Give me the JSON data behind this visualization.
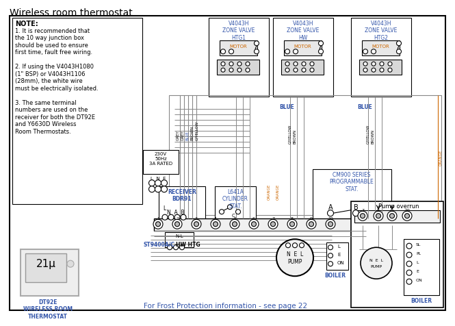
{
  "title": "Wireless room thermostat",
  "bg_color": "#ffffff",
  "blue_color": "#3355aa",
  "orange_color": "#cc6600",
  "grey_color": "#888888",
  "frost_text": "For Frost Protection information - see page 22",
  "dt92e_label": "DT92E\nWIRELESS ROOM\nTHERMOSTAT",
  "zone_labels": [
    "V4043H\nZONE VALVE\nHTG1",
    "V4043H\nZONE VALVE\nHW",
    "V4043H\nZONE VALVE\nHTG2"
  ],
  "wire_labels_htg1": [
    "GREY",
    "GREY",
    "BLUE",
    "BROWN",
    "G/YELLOW"
  ],
  "wire_labels_hw": [
    "BLUE",
    "G/YELLOW",
    "BROWN"
  ],
  "wire_labels_htg2": [
    "BLUE",
    "G/YELLOW",
    "BROWN"
  ],
  "orange_wire": "ORANGE",
  "power_label": "230V\n50Hz\n3A RATED",
  "receiver_label": "RECEIVER\nBDR91",
  "cylinder_label": "L641A\nCYLINDER\nSTAT.",
  "cm900_label": "CM900 SERIES\nPROGRAMMABLE\nSTAT.",
  "pump_overrun_label": "Pump overrun",
  "st9400_label": "ST9400A/C",
  "hw_htg_label": "HW HTG",
  "nel_pump_label": "N E L\nPUMP",
  "boiler_lne": "L\nE\nON",
  "boiler_slpl": "SL\nPL\nL\nE\nON",
  "note_lines": [
    "NOTE:",
    "1. It is recommended that",
    "the 10 way junction box",
    "should be used to ensure",
    "first time, fault free wiring.",
    " ",
    "2. If using the V4043H1080",
    "(1\" BSP) or V4043H1106",
    "(28mm), the white wire",
    "must be electrically isolated.",
    " ",
    "3. The same terminal",
    "numbers are used on the",
    "receiver for both the DT92E",
    "and Y6630D Wireless",
    "Room Thermostats."
  ]
}
